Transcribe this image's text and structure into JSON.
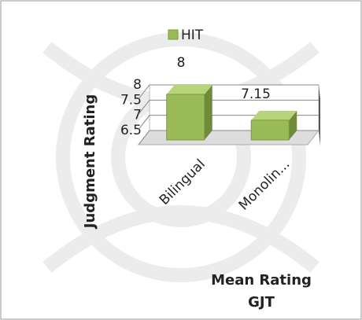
{
  "chart_data": {
    "type": "bar3d",
    "ylabel": "Judgment Rating",
    "xlabel": [
      "Mean Rating",
      "GJT"
    ],
    "categories": [
      "Bilingual",
      "Monolin..."
    ],
    "series": [
      {
        "name": "HIT",
        "color": "#9bbb59",
        "values": [
          8,
          7.15
        ]
      }
    ],
    "ylim": [
      6.5,
      8
    ],
    "yticks": [
      6.5,
      7,
      7.5,
      8
    ],
    "grid": true,
    "legend": "top"
  }
}
